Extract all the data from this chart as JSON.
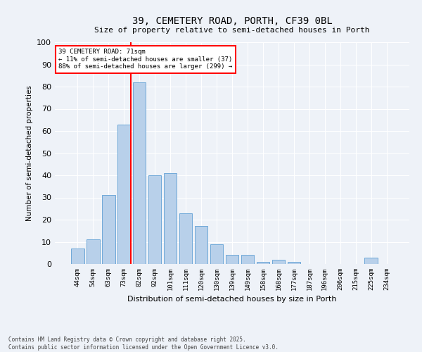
{
  "title": "39, CEMETERY ROAD, PORTH, CF39 0BL",
  "subtitle": "Size of property relative to semi-detached houses in Porth",
  "xlabel": "Distribution of semi-detached houses by size in Porth",
  "ylabel": "Number of semi-detached properties",
  "categories": [
    "44sqm",
    "54sqm",
    "63sqm",
    "73sqm",
    "82sqm",
    "92sqm",
    "101sqm",
    "111sqm",
    "120sqm",
    "130sqm",
    "139sqm",
    "149sqm",
    "158sqm",
    "168sqm",
    "177sqm",
    "187sqm",
    "196sqm",
    "206sqm",
    "215sqm",
    "225sqm",
    "234sqm"
  ],
  "values": [
    7,
    11,
    31,
    63,
    82,
    40,
    41,
    23,
    17,
    9,
    4,
    4,
    1,
    2,
    1,
    0,
    0,
    0,
    0,
    3,
    0
  ],
  "bar_color": "#b8d0ea",
  "bar_edge_color": "#6ea8d8",
  "vline_x_index": 3,
  "vline_color": "red",
  "annotation_title": "39 CEMETERY ROAD: 71sqm",
  "annotation_line1": "← 11% of semi-detached houses are smaller (37)",
  "annotation_line2": "88% of semi-detached houses are larger (299) →",
  "ylim": [
    0,
    100
  ],
  "yticks": [
    0,
    10,
    20,
    30,
    40,
    50,
    60,
    70,
    80,
    90,
    100
  ],
  "background_color": "#eef2f8",
  "grid_color": "#ffffff",
  "footer1": "Contains HM Land Registry data © Crown copyright and database right 2025.",
  "footer2": "Contains public sector information licensed under the Open Government Licence v3.0."
}
